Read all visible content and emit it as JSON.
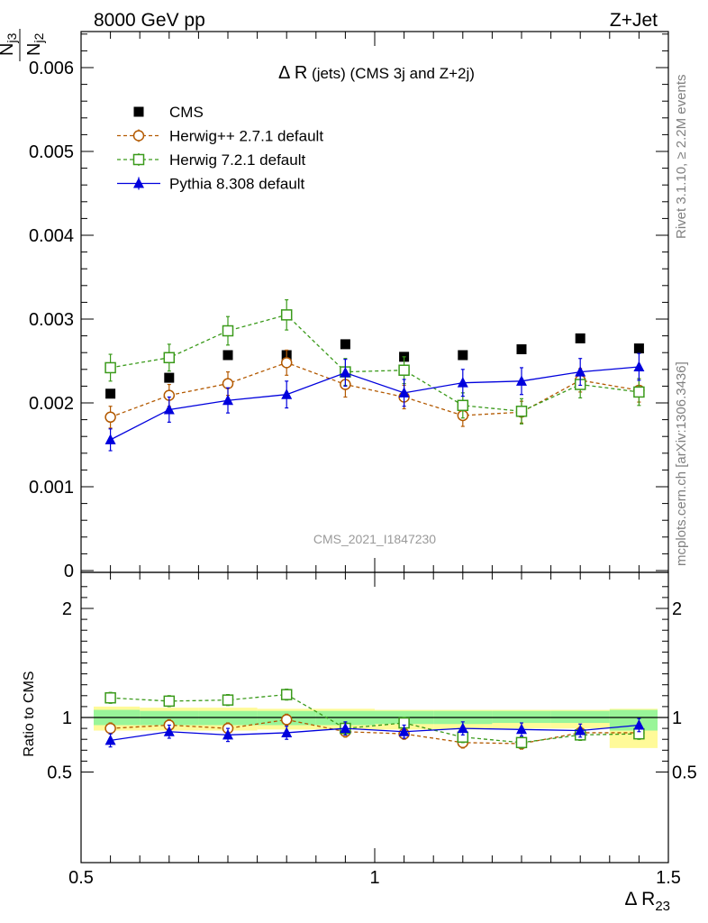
{
  "header": {
    "left": "8000 GeV pp",
    "right": "Z+Jet"
  },
  "side_labels": {
    "rivet": "Rivet 3.1.10, ≥ 2.2M events",
    "mcplots": "mcplots.cern.ch [arXiv:1306.3436]"
  },
  "watermark": "CMS_2021_I1847230",
  "main_title": {
    "delta": "Δ R",
    "rest": " (jets) (CMS 3j and Z+2j)"
  },
  "ylabel_main": {
    "num": "N",
    "num_sub": "j3",
    "den": "N",
    "den_sub": "j2"
  },
  "ylabel_ratio": "Ratio to CMS",
  "xlabel": {
    "main": "Δ R",
    "sub": "23"
  },
  "colors": {
    "cms": "#000000",
    "herwigpp": "#b35900",
    "herwig7": "#3a9a1a",
    "pythia": "#0000dd",
    "band_inner": "#99f599",
    "band_outer": "#fffa99"
  },
  "chart_data": [
    {
      "type": "scatter",
      "panel": "main",
      "xlim": [
        0.5,
        1.5
      ],
      "ylim": [
        0,
        0.0065
      ],
      "x_ticks": [
        "0.5",
        "1",
        "1.5"
      ],
      "y_ticks": [
        "0",
        "0.001",
        "0.002",
        "0.003",
        "0.004",
        "0.005",
        "0.006"
      ],
      "x": [
        0.55,
        0.65,
        0.75,
        0.85,
        0.95,
        1.05,
        1.15,
        1.25,
        1.35,
        1.45
      ],
      "legend_position": "top-left",
      "series": [
        {
          "name": "CMS",
          "marker": "square-filled",
          "line": "none",
          "values": [
            0.00211,
            0.0023,
            0.00257,
            0.00257,
            0.0027,
            0.00255,
            0.00257,
            0.00264,
            0.00277,
            0.00265
          ]
        },
        {
          "name": "Herwig++ 2.7.1 default",
          "marker": "circle-open",
          "line": "dashed",
          "values": [
            0.00183,
            0.00209,
            0.00223,
            0.00248,
            0.00222,
            0.00207,
            0.00185,
            0.00189,
            0.00227,
            0.00215
          ],
          "errors": [
            0.00013,
            0.00013,
            0.00014,
            0.00015,
            0.00015,
            0.00014,
            0.00013,
            0.00013,
            0.00014,
            0.00014
          ]
        },
        {
          "name": "Herwig 7.2.1 default",
          "marker": "square-open",
          "line": "dashed",
          "values": [
            0.00242,
            0.00254,
            0.00286,
            0.00305,
            0.00237,
            0.00239,
            0.00197,
            0.0019,
            0.00222,
            0.00213
          ],
          "errors": [
            0.00016,
            0.00016,
            0.00017,
            0.00018,
            0.00016,
            0.00016,
            0.00015,
            0.00015,
            0.00016,
            0.00016
          ]
        },
        {
          "name": "Pythia 8.308 default",
          "marker": "triangle-filled",
          "line": "solid",
          "values": [
            0.00156,
            0.00192,
            0.00203,
            0.0021,
            0.00236,
            0.00212,
            0.00224,
            0.00226,
            0.00237,
            0.00243
          ],
          "errors": [
            0.00013,
            0.00015,
            0.00015,
            0.00016,
            0.00016,
            0.00016,
            0.00016,
            0.00016,
            0.00016,
            0.00016
          ]
        }
      ]
    },
    {
      "type": "scatter",
      "panel": "ratio",
      "ylabel": "Ratio to CMS",
      "xlim": [
        0.5,
        1.5
      ],
      "ylim": [
        0.35,
        2.3
      ],
      "y_ticks": [
        "0.5",
        "1",
        "2"
      ],
      "x": [
        0.55,
        0.65,
        0.75,
        0.85,
        0.95,
        1.05,
        1.15,
        1.25,
        1.35,
        1.45
      ],
      "bands": {
        "x_edges": [
          0.5,
          0.6,
          0.7,
          0.8,
          0.9,
          1.0,
          1.1,
          1.2,
          1.3,
          1.4,
          1.5
        ],
        "inner": [
          [
            0.93,
            1.07
          ],
          [
            0.93,
            1.06
          ],
          [
            0.93,
            1.06
          ],
          [
            0.93,
            1.06
          ],
          [
            0.93,
            1.06
          ],
          [
            0.94,
            1.06
          ],
          [
            0.94,
            1.06
          ],
          [
            0.95,
            1.06
          ],
          [
            0.95,
            1.06
          ],
          [
            0.88,
            1.07
          ]
        ],
        "outer": [
          [
            0.88,
            1.1
          ],
          [
            0.88,
            1.09
          ],
          [
            0.88,
            1.09
          ],
          [
            0.89,
            1.08
          ],
          [
            0.89,
            1.08
          ],
          [
            0.89,
            1.07
          ],
          [
            0.89,
            1.07
          ],
          [
            0.9,
            1.07
          ],
          [
            0.9,
            1.07
          ],
          [
            0.72,
            1.08
          ]
        ]
      },
      "series": [
        {
          "name": "Herwig++ 2.7.1 default",
          "values": [
            0.9,
            0.93,
            0.9,
            0.98,
            0.87,
            0.85,
            0.77,
            0.76,
            0.86,
            0.86
          ],
          "errors": [
            0.05,
            0.05,
            0.05,
            0.05,
            0.05,
            0.05,
            0.05,
            0.05,
            0.05,
            0.05
          ]
        },
        {
          "name": "Herwig 7.2.1 default",
          "values": [
            1.18,
            1.15,
            1.16,
            1.21,
            0.9,
            0.95,
            0.82,
            0.77,
            0.84,
            0.85
          ],
          "errors": [
            0.05,
            0.05,
            0.05,
            0.05,
            0.05,
            0.05,
            0.05,
            0.05,
            0.05,
            0.05
          ]
        },
        {
          "name": "Pythia 8.308 default",
          "values": [
            0.79,
            0.87,
            0.84,
            0.86,
            0.9,
            0.87,
            0.9,
            0.89,
            0.88,
            0.93
          ],
          "errors": [
            0.06,
            0.06,
            0.06,
            0.06,
            0.06,
            0.06,
            0.06,
            0.06,
            0.06,
            0.06
          ]
        }
      ]
    }
  ]
}
